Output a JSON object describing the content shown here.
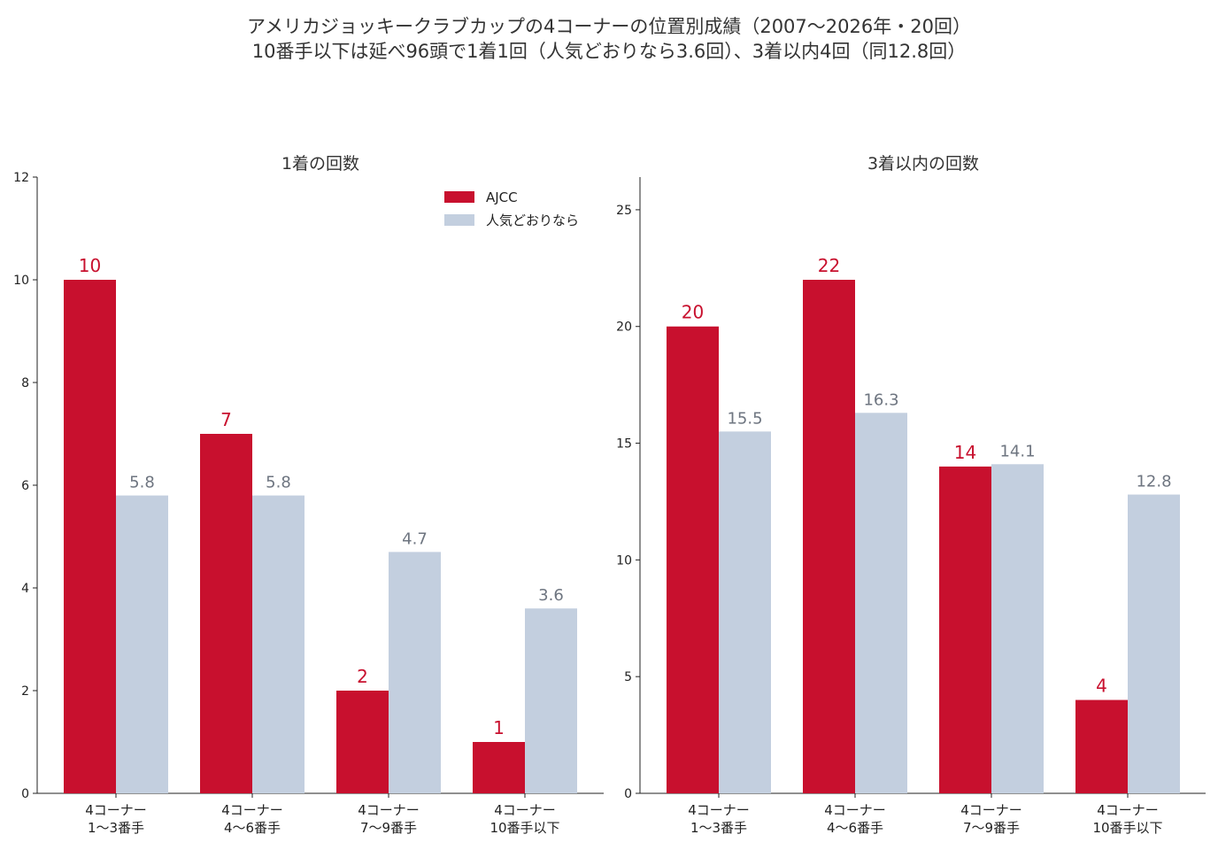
{
  "title": {
    "line1": "アメリカジョッキークラブカップの4コーナーの位置別成績（2007〜2026年・20回）",
    "line2": "10番手以下は延べ96頭で1着1回（人気どおりなら3.6回）、3着以内4回（同12.8回）"
  },
  "colors": {
    "ajcc": "#c8102e",
    "expected": "#c3cfdf",
    "axis": "#222222",
    "exp_label": "#6e7580"
  },
  "legend": {
    "ajcc": "AJCC",
    "expected": "人気どおりなら"
  },
  "chart_data": [
    {
      "type": "bar",
      "title": "1着の回数",
      "categories": [
        [
          "4コーナー",
          "1〜3番手"
        ],
        [
          "4コーナー",
          "4〜6番手"
        ],
        [
          "4コーナー",
          "7〜9番手"
        ],
        [
          "4コーナー",
          "10番手以下"
        ]
      ],
      "series": [
        {
          "name": "AJCC",
          "values": [
            10,
            7,
            2,
            1
          ],
          "labels": [
            "10",
            "7",
            "2",
            "1"
          ]
        },
        {
          "name": "人気どおりなら",
          "values": [
            5.8,
            5.8,
            4.7,
            3.6
          ],
          "labels": [
            "5.8",
            "5.8",
            "4.7",
            "3.6"
          ]
        }
      ],
      "ylim": [
        0,
        12
      ],
      "yticks": [
        0,
        2,
        4,
        6,
        8,
        10,
        12
      ],
      "legend": "top-right",
      "grid": false
    },
    {
      "type": "bar",
      "title": "3着以内の回数",
      "categories": [
        [
          "4コーナー",
          "1〜3番手"
        ],
        [
          "4コーナー",
          "4〜6番手"
        ],
        [
          "4コーナー",
          "7〜9番手"
        ],
        [
          "4コーナー",
          "10番手以下"
        ]
      ],
      "series": [
        {
          "name": "AJCC",
          "values": [
            20,
            22,
            14,
            4
          ],
          "labels": [
            "20",
            "22",
            "14",
            "4"
          ]
        },
        {
          "name": "人気どおりなら",
          "values": [
            15.5,
            16.3,
            14.1,
            12.8
          ],
          "labels": [
            "15.5",
            "16.3",
            "14.1",
            "12.8"
          ]
        }
      ],
      "ylim": [
        0,
        26.4
      ],
      "yticks": [
        0,
        5,
        10,
        15,
        20,
        25
      ],
      "grid": false
    }
  ]
}
